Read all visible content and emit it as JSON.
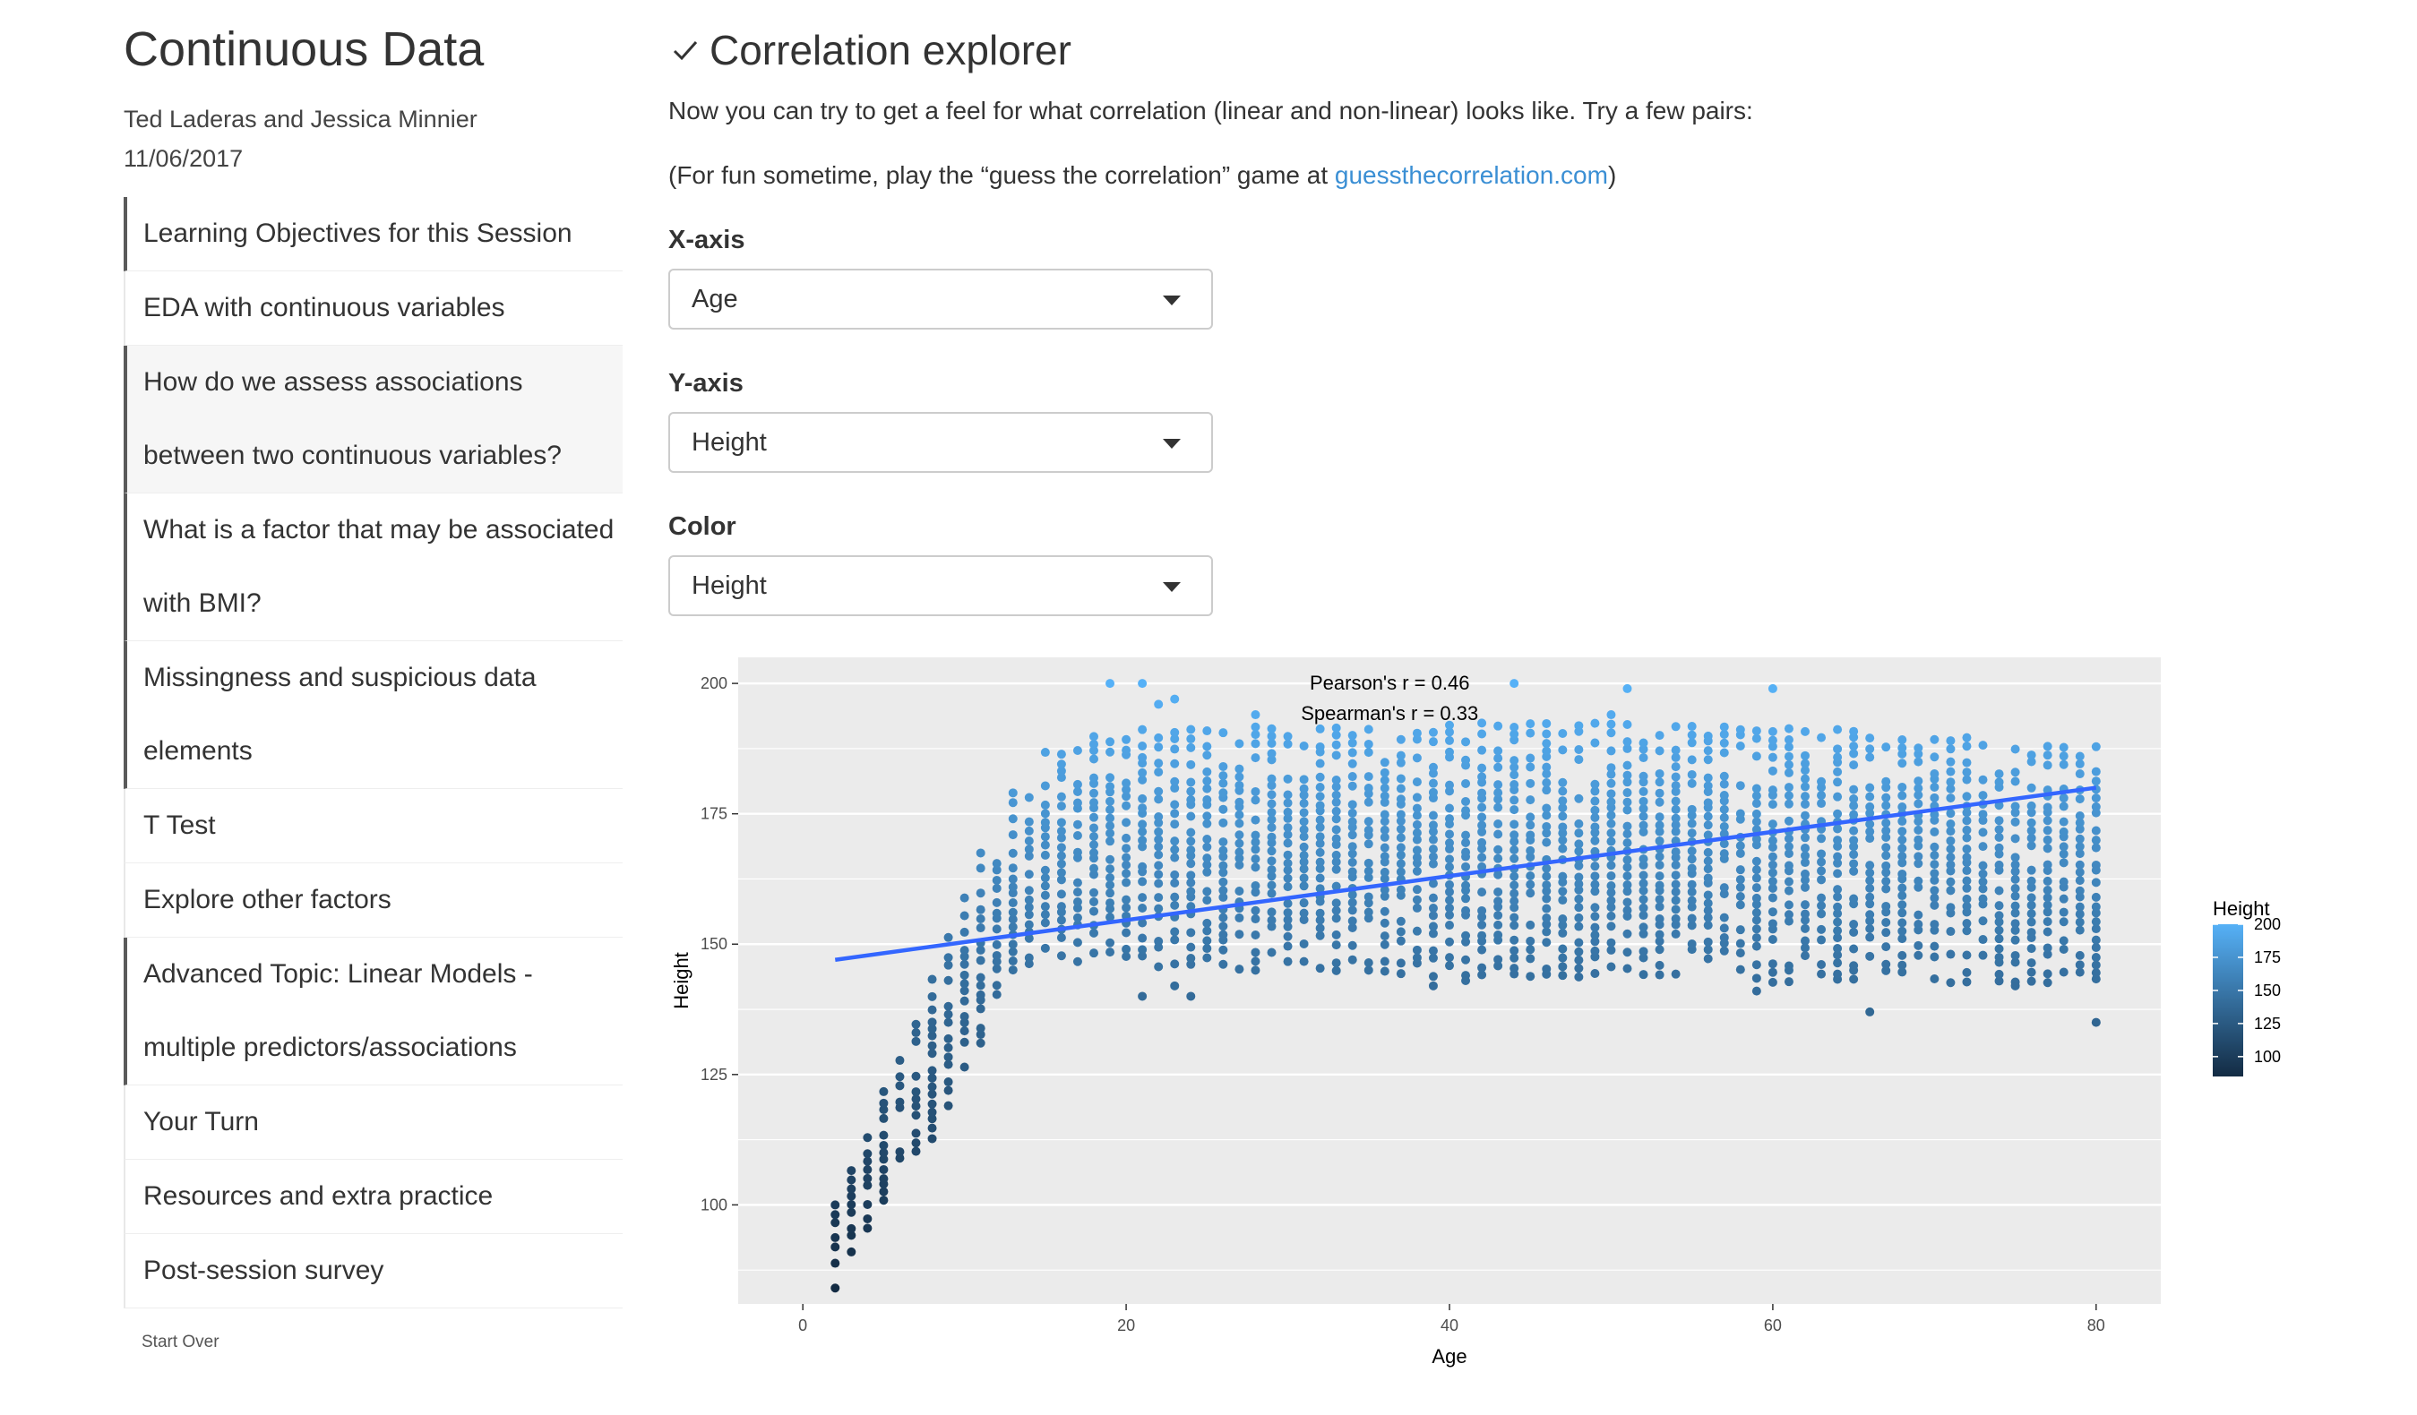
{
  "sidebar": {
    "title": "Continuous Data",
    "authors": "Ted Laderas and Jessica Minnier",
    "date": "11/06/2017",
    "toc": [
      {
        "lines": [
          "Learning Objectives for this Session"
        ],
        "section": true,
        "highlight": false
      },
      {
        "lines": [
          "EDA with continuous variables"
        ],
        "section": false,
        "highlight": false
      },
      {
        "lines": [
          "How do we assess associations",
          "between two continuous variables?"
        ],
        "section": true,
        "highlight": true
      },
      {
        "lines": [
          "What is a factor that may be associated",
          "with BMI?"
        ],
        "section": true,
        "highlight": false
      },
      {
        "lines": [
          "Missingness and suspicious data",
          "elements"
        ],
        "section": true,
        "highlight": false
      },
      {
        "lines": [
          "T Test"
        ],
        "section": false,
        "highlight": false
      },
      {
        "lines": [
          "Explore other factors"
        ],
        "section": false,
        "highlight": false
      },
      {
        "lines": [
          "Advanced Topic: Linear Models -",
          "multiple predictors/associations"
        ],
        "section": true,
        "highlight": false
      },
      {
        "lines": [
          "Your Turn"
        ],
        "section": false,
        "highlight": false
      },
      {
        "lines": [
          "Resources and extra practice"
        ],
        "section": false,
        "highlight": false
      },
      {
        "lines": [
          "Post-session survey"
        ],
        "section": false,
        "highlight": false
      }
    ],
    "start_over": "Start Over"
  },
  "main": {
    "title": "Correlation explorer",
    "intro": "Now you can try to get a feel for what correlation (linear and non-linear) looks like. Try a few pairs:",
    "fun_prefix": "(For fun sometime, play the “guess the correlation” game at ",
    "fun_link": "guessthecorrelation.com",
    "fun_suffix": ")",
    "controls": {
      "x_label": "X-axis",
      "x_value": "Age",
      "y_label": "Y-axis",
      "y_value": "Height",
      "color_label": "Color",
      "color_value": "Height"
    }
  },
  "colors": {
    "panel_bg": "#ebebeb",
    "grid": "#ffffff",
    "fit_line": "#3366ff",
    "gradient_low": "#132b43",
    "gradient_high": "#56b1f7",
    "link": "#3b8fd4"
  },
  "chart_data": {
    "type": "scatter",
    "xlabel": "Age",
    "ylabel": "Height",
    "xlim": [
      -4,
      84
    ],
    "ylim": [
      81,
      205
    ],
    "x_ticks": [
      0,
      20,
      40,
      60,
      80
    ],
    "y_ticks": [
      100,
      125,
      150,
      175,
      200
    ],
    "grid": true,
    "annotations": [
      "Pearson's r =  0.46",
      "Spearman's r =  0.33"
    ],
    "fit_line": {
      "x": [
        2,
        80
      ],
      "y": [
        147,
        180
      ]
    },
    "legend": {
      "title": "Height",
      "breaks": [
        200,
        175,
        150,
        125,
        100
      ],
      "range": [
        85,
        200
      ],
      "placement": "right"
    },
    "column_profiles": [
      {
        "x": 2,
        "lo": 84,
        "hi": 102
      },
      {
        "x": 3,
        "lo": 89,
        "hi": 108
      },
      {
        "x": 4,
        "lo": 94,
        "hi": 114
      },
      {
        "x": 5,
        "lo": 99,
        "hi": 122
      },
      {
        "x": 6,
        "lo": 104,
        "hi": 130
      },
      {
        "x": 7,
        "lo": 109,
        "hi": 136
      },
      {
        "x": 8,
        "lo": 113,
        "hi": 145
      },
      {
        "x": 9,
        "lo": 119,
        "hi": 152
      },
      {
        "x": 10,
        "lo": 125,
        "hi": 160
      },
      {
        "x": 11,
        "lo": 131,
        "hi": 168
      },
      {
        "x": 12,
        "lo": 137,
        "hi": 174
      },
      {
        "x": 13,
        "lo": 142,
        "hi": 181
      },
      {
        "x": 14,
        "lo": 146,
        "hi": 184
      },
      {
        "x": 15,
        "lo": 148,
        "hi": 187
      },
      {
        "x": 16,
        "lo": 148,
        "hi": 189
      },
      {
        "x": 17,
        "lo": 147,
        "hi": 190
      },
      {
        "x": 18,
        "lo": 147,
        "hi": 191
      },
      {
        "x": 19,
        "lo": 147,
        "hi": 192
      },
      {
        "x": 20,
        "lo": 146,
        "hi": 192
      },
      {
        "x": 25,
        "lo": 146,
        "hi": 192
      },
      {
        "x": 30,
        "lo": 145,
        "hi": 192
      },
      {
        "x": 35,
        "lo": 145,
        "hi": 192
      },
      {
        "x": 40,
        "lo": 144,
        "hi": 192
      },
      {
        "x": 45,
        "lo": 144,
        "hi": 192
      },
      {
        "x": 50,
        "lo": 144,
        "hi": 192
      },
      {
        "x": 55,
        "lo": 144,
        "hi": 192
      },
      {
        "x": 60,
        "lo": 143,
        "hi": 191
      },
      {
        "x": 65,
        "lo": 143,
        "hi": 191
      },
      {
        "x": 70,
        "lo": 143,
        "hi": 190
      },
      {
        "x": 75,
        "lo": 143,
        "hi": 189
      },
      {
        "x": 80,
        "lo": 143,
        "hi": 189
      }
    ],
    "outliers": [
      {
        "x": 19,
        "y": 200
      },
      {
        "x": 21,
        "y": 200
      },
      {
        "x": 23,
        "y": 197
      },
      {
        "x": 22,
        "y": 196
      },
      {
        "x": 28,
        "y": 194
      },
      {
        "x": 44,
        "y": 200
      },
      {
        "x": 51,
        "y": 199
      },
      {
        "x": 60,
        "y": 199
      },
      {
        "x": 50,
        "y": 194
      },
      {
        "x": 21,
        "y": 140
      },
      {
        "x": 23,
        "y": 142
      },
      {
        "x": 24,
        "y": 140
      },
      {
        "x": 39,
        "y": 142
      },
      {
        "x": 41,
        "y": 143
      },
      {
        "x": 47,
        "y": 144
      },
      {
        "x": 59,
        "y": 141
      },
      {
        "x": 66,
        "y": 137
      },
      {
        "x": 75,
        "y": 142
      },
      {
        "x": 80,
        "y": 135
      }
    ]
  }
}
